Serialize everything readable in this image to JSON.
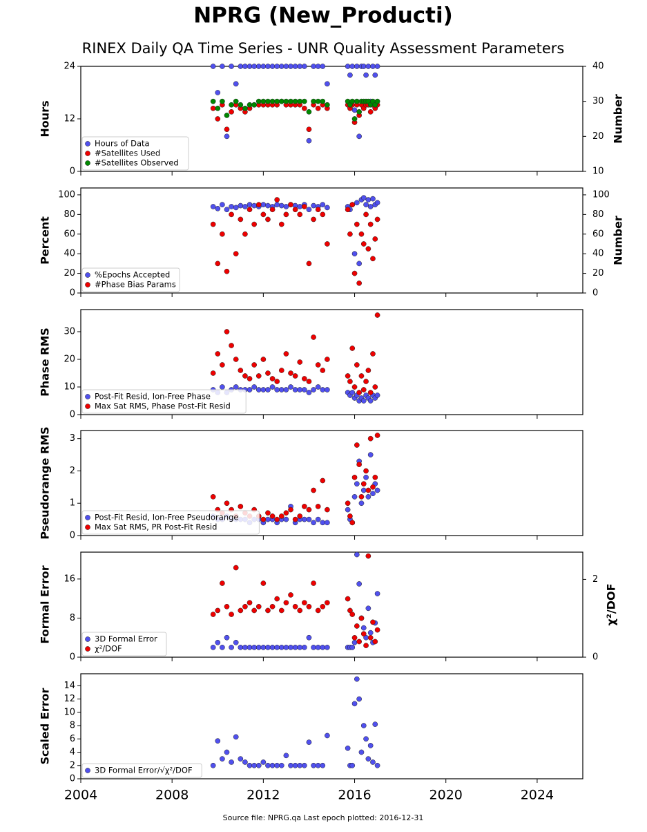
{
  "title": "NPRG (New_Producti)",
  "subtitle": "RINEX Daily QA Time Series - UNR Quality Assessment Parameters",
  "source": "Source file: NPRG.qa Last epoch plotted: 2016-12-31",
  "chart_data": [
    {
      "type": "scatter",
      "ylabel": "Hours",
      "y2label": "Number",
      "ylim": [
        0,
        24
      ],
      "yticks": [
        0,
        12,
        24
      ],
      "y2lim": [
        10,
        40
      ],
      "y2ticks": [
        10,
        20,
        30,
        40
      ],
      "legend": "lower left",
      "x": [
        2009.8,
        2010.0,
        2010.2,
        2010.4,
        2010.6,
        2010.8,
        2011.0,
        2011.2,
        2011.4,
        2011.6,
        2011.8,
        2012.0,
        2012.2,
        2012.4,
        2012.6,
        2012.8,
        2013.0,
        2013.2,
        2013.4,
        2013.6,
        2013.8,
        2014.0,
        2014.2,
        2014.4,
        2014.6,
        2014.8,
        2015.7,
        2015.8,
        2015.9,
        2016.0,
        2016.1,
        2016.2,
        2016.3,
        2016.4,
        2016.5,
        2016.6,
        2016.7,
        2016.8,
        2016.9,
        2017.0
      ],
      "series": [
        {
          "name": "Hours of Data",
          "color": "#5050ee",
          "values": [
            24,
            18,
            24,
            8,
            24,
            20,
            24,
            24,
            24,
            24,
            24,
            24,
            24,
            24,
            24,
            24,
            24,
            24,
            24,
            24,
            24,
            7,
            24,
            24,
            24,
            20,
            24,
            22,
            24,
            14,
            24,
            8,
            24,
            24,
            22,
            24,
            16,
            24,
            22,
            24
          ]
        },
        {
          "name": "#Satellites Used",
          "color": "#ee0000",
          "axis": "y2",
          "values": [
            28,
            25,
            29,
            22,
            27,
            29,
            28,
            27,
            28,
            29,
            29,
            29,
            29,
            29,
            29,
            30,
            29,
            29,
            29,
            29,
            28,
            22,
            29,
            28,
            29,
            28,
            29,
            28,
            29,
            24,
            29,
            26,
            29,
            28,
            29,
            29,
            27,
            29,
            28,
            29
          ]
        },
        {
          "name": "#Satellites Observed",
          "color": "#008800",
          "axis": "y2",
          "values": [
            30,
            28,
            30,
            26,
            29,
            30,
            29,
            28,
            29,
            29,
            30,
            30,
            30,
            30,
            30,
            30,
            30,
            30,
            30,
            30,
            30,
            27,
            30,
            30,
            30,
            29,
            30,
            29,
            30,
            25,
            30,
            27,
            30,
            30,
            30,
            30,
            29,
            30,
            29,
            30
          ]
        }
      ]
    },
    {
      "type": "scatter",
      "ylabel": "Percent",
      "y2label": "Number",
      "ylim": [
        0,
        107
      ],
      "yticks": [
        0,
        20,
        40,
        60,
        80,
        100
      ],
      "y2lim": [
        0,
        107
      ],
      "y2ticks": [
        0,
        20,
        40,
        60,
        80,
        100
      ],
      "legend": "lower left",
      "x": [
        2009.8,
        2010.0,
        2010.2,
        2010.4,
        2010.6,
        2010.8,
        2011.0,
        2011.2,
        2011.4,
        2011.6,
        2011.8,
        2012.0,
        2012.2,
        2012.4,
        2012.6,
        2012.8,
        2013.0,
        2013.2,
        2013.4,
        2013.6,
        2013.8,
        2014.0,
        2014.2,
        2014.4,
        2014.6,
        2014.8,
        2015.7,
        2015.8,
        2015.9,
        2016.0,
        2016.1,
        2016.2,
        2016.3,
        2016.4,
        2016.5,
        2016.6,
        2016.7,
        2016.8,
        2016.9,
        2017.0
      ],
      "series": [
        {
          "name": "%Epochs Accepted",
          "color": "#5050ee",
          "values": [
            88,
            86,
            90,
            85,
            88,
            87,
            89,
            88,
            90,
            89,
            88,
            90,
            89,
            88,
            90,
            89,
            88,
            90,
            89,
            88,
            90,
            85,
            89,
            88,
            90,
            87,
            88,
            85,
            90,
            40,
            92,
            30,
            95,
            97,
            90,
            95,
            88,
            96,
            90,
            92
          ]
        },
        {
          "name": "#Phase Bias Params",
          "color": "#ee0000",
          "axis": "y2",
          "values": [
            70,
            30,
            60,
            22,
            80,
            40,
            75,
            60,
            85,
            70,
            90,
            80,
            75,
            85,
            95,
            70,
            80,
            90,
            85,
            80,
            88,
            30,
            75,
            85,
            80,
            50,
            85,
            60,
            90,
            20,
            70,
            10,
            60,
            50,
            80,
            45,
            70,
            35,
            55,
            75
          ]
        }
      ]
    },
    {
      "type": "scatter",
      "ylabel": "Phase RMS",
      "ylim": [
        0,
        38
      ],
      "yticks": [
        0,
        10,
        20,
        30
      ],
      "legend": "lower left",
      "x": [
        2009.8,
        2010.0,
        2010.2,
        2010.4,
        2010.6,
        2010.8,
        2011.0,
        2011.2,
        2011.4,
        2011.6,
        2011.8,
        2012.0,
        2012.2,
        2012.4,
        2012.6,
        2012.8,
        2013.0,
        2013.2,
        2013.4,
        2013.6,
        2013.8,
        2014.0,
        2014.2,
        2014.4,
        2014.6,
        2014.8,
        2015.7,
        2015.8,
        2015.9,
        2016.0,
        2016.1,
        2016.2,
        2016.3,
        2016.4,
        2016.5,
        2016.6,
        2016.7,
        2016.8,
        2016.9,
        2017.0
      ],
      "series": [
        {
          "name": "Post-Fit Resid, Ion-Free Phase",
          "color": "#5050ee",
          "values": [
            9,
            8,
            10,
            8,
            9,
            10,
            9,
            9,
            9,
            10,
            9,
            9,
            9,
            10,
            9,
            9,
            9,
            10,
            9,
            9,
            9,
            8,
            9,
            10,
            9,
            9,
            8,
            7,
            8,
            6,
            7,
            5,
            6,
            5,
            7,
            6,
            5,
            7,
            6,
            7
          ]
        },
        {
          "name": "Max Sat RMS, Phase Post-Fit Resid",
          "color": "#ee0000",
          "values": [
            15,
            22,
            18,
            30,
            25,
            20,
            16,
            14,
            13,
            18,
            14,
            20,
            15,
            13,
            12,
            16,
            22,
            15,
            14,
            19,
            13,
            12,
            28,
            18,
            16,
            20,
            14,
            12,
            24,
            10,
            18,
            8,
            14,
            9,
            12,
            16,
            8,
            22,
            10,
            36
          ]
        }
      ]
    },
    {
      "type": "scatter",
      "ylabel": "Pseudorange RMS",
      "ylim": [
        0,
        3.25
      ],
      "yticks": [
        0,
        1,
        2,
        3
      ],
      "legend": "lower left",
      "x": [
        2009.8,
        2010.0,
        2010.2,
        2010.4,
        2010.6,
        2010.8,
        2011.0,
        2011.2,
        2011.4,
        2011.6,
        2011.8,
        2012.0,
        2012.2,
        2012.4,
        2012.6,
        2012.8,
        2013.0,
        2013.2,
        2013.4,
        2013.6,
        2013.8,
        2014.0,
        2014.2,
        2014.4,
        2014.6,
        2014.8,
        2015.7,
        2015.8,
        2015.9,
        2016.0,
        2016.1,
        2016.2,
        2016.3,
        2016.4,
        2016.5,
        2016.6,
        2016.7,
        2016.8,
        2016.9,
        2017.0
      ],
      "series": [
        {
          "name": "Post-Fit Resid, Ion-Free Pseudorange",
          "color": "#5050ee",
          "values": [
            0.6,
            0.5,
            0.5,
            0.6,
            0.5,
            0.5,
            0.5,
            0.5,
            0.4,
            0.5,
            0.5,
            0.4,
            0.5,
            0.5,
            0.4,
            0.5,
            0.5,
            0.9,
            0.4,
            0.5,
            0.5,
            0.5,
            0.4,
            0.5,
            0.4,
            0.4,
            0.8,
            0.5,
            0.4,
            1.2,
            1.6,
            2.3,
            1.0,
            1.4,
            1.8,
            1.2,
            2.5,
            1.3,
            1.6,
            1.4
          ]
        },
        {
          "name": "Max Sat RMS, PR Post-Fit Resid",
          "color": "#ee0000",
          "values": [
            1.2,
            0.8,
            0.7,
            1.0,
            0.8,
            0.6,
            0.9,
            0.7,
            0.6,
            0.8,
            0.6,
            0.5,
            0.7,
            0.6,
            0.5,
            0.6,
            0.7,
            0.8,
            0.5,
            0.6,
            0.9,
            0.8,
            1.4,
            0.9,
            1.7,
            0.8,
            1.0,
            0.6,
            0.4,
            1.8,
            2.8,
            2.2,
            1.2,
            1.6,
            2.0,
            1.4,
            3.0,
            1.5,
            1.8,
            3.1
          ]
        }
      ]
    },
    {
      "type": "scatter",
      "ylabel": "Formal Error",
      "y2label": "χ²/DOF",
      "ylim": [
        0,
        21.5
      ],
      "yticks": [
        0,
        8,
        16
      ],
      "y2lim": [
        0,
        2.7
      ],
      "y2ticks": [
        0,
        2
      ],
      "legend": "lower left",
      "x": [
        2009.8,
        2010.0,
        2010.2,
        2010.4,
        2010.6,
        2010.8,
        2011.0,
        2011.2,
        2011.4,
        2011.6,
        2011.8,
        2012.0,
        2012.2,
        2012.4,
        2012.6,
        2012.8,
        2013.0,
        2013.2,
        2013.4,
        2013.6,
        2013.8,
        2014.0,
        2014.2,
        2014.4,
        2014.6,
        2014.8,
        2015.7,
        2015.8,
        2015.9,
        2016.0,
        2016.1,
        2016.2,
        2016.3,
        2016.4,
        2016.5,
        2016.6,
        2016.7,
        2016.8,
        2016.9,
        2017.0
      ],
      "series": [
        {
          "name": "3D Formal Error",
          "color": "#5050ee",
          "values": [
            2,
            3,
            2,
            4,
            2,
            3,
            2,
            2,
            2,
            2,
            2,
            2,
            2,
            2,
            2,
            2,
            2,
            2,
            2,
            2,
            2,
            4,
            2,
            2,
            2,
            2,
            2,
            2,
            2,
            3,
            21,
            15,
            8,
            6,
            4,
            10,
            5,
            3,
            7,
            13
          ]
        },
        {
          "name": "χ²/DOF",
          "color": "#ee0000",
          "axis": "y2",
          "values": [
            1.1,
            1.2,
            1.9,
            1.3,
            1.1,
            2.3,
            1.2,
            1.3,
            1.4,
            1.2,
            1.3,
            1.9,
            1.2,
            1.3,
            1.5,
            1.2,
            1.4,
            1.6,
            1.3,
            1.2,
            1.4,
            1.3,
            1.9,
            1.2,
            1.3,
            1.4,
            1.5,
            1.2,
            1.1,
            0.5,
            0.8,
            0.4,
            1.0,
            0.6,
            0.3,
            2.6,
            0.5,
            0.9,
            0.4,
            0.7
          ]
        }
      ]
    },
    {
      "type": "scatter",
      "ylabel": "Scaled Error",
      "ylim": [
        0,
        15.8
      ],
      "yticks": [
        0,
        2,
        4,
        6,
        8,
        10,
        12,
        14
      ],
      "legend": "lower left",
      "xlim": [
        2004,
        2026
      ],
      "xticks": [
        2004,
        2008,
        2012,
        2016,
        2020,
        2024
      ],
      "x": [
        2009.8,
        2010.0,
        2010.2,
        2010.4,
        2010.6,
        2010.8,
        2011.0,
        2011.2,
        2011.4,
        2011.6,
        2011.8,
        2012.0,
        2012.2,
        2012.4,
        2012.6,
        2012.8,
        2013.0,
        2013.2,
        2013.4,
        2013.6,
        2013.8,
        2014.0,
        2014.2,
        2014.4,
        2014.6,
        2014.8,
        2015.7,
        2015.8,
        2015.9,
        2016.0,
        2016.1,
        2016.2,
        2016.3,
        2016.4,
        2016.5,
        2016.6,
        2016.7,
        2016.8,
        2016.9,
        2017.0
      ],
      "series": [
        {
          "name": "3D Formal Error/√χ²/DOF",
          "color": "#5050ee",
          "values": [
            2,
            5.7,
            3,
            4,
            2.5,
            6.3,
            3,
            2.5,
            2,
            2,
            2,
            2.5,
            2,
            2,
            2,
            2,
            3.5,
            2,
            2,
            2,
            2,
            5.5,
            2,
            2,
            2,
            6.5,
            4.6,
            2,
            2,
            11.3,
            15,
            12,
            4,
            8,
            6,
            3,
            5,
            2.5,
            8.2,
            2
          ]
        }
      ]
    }
  ]
}
